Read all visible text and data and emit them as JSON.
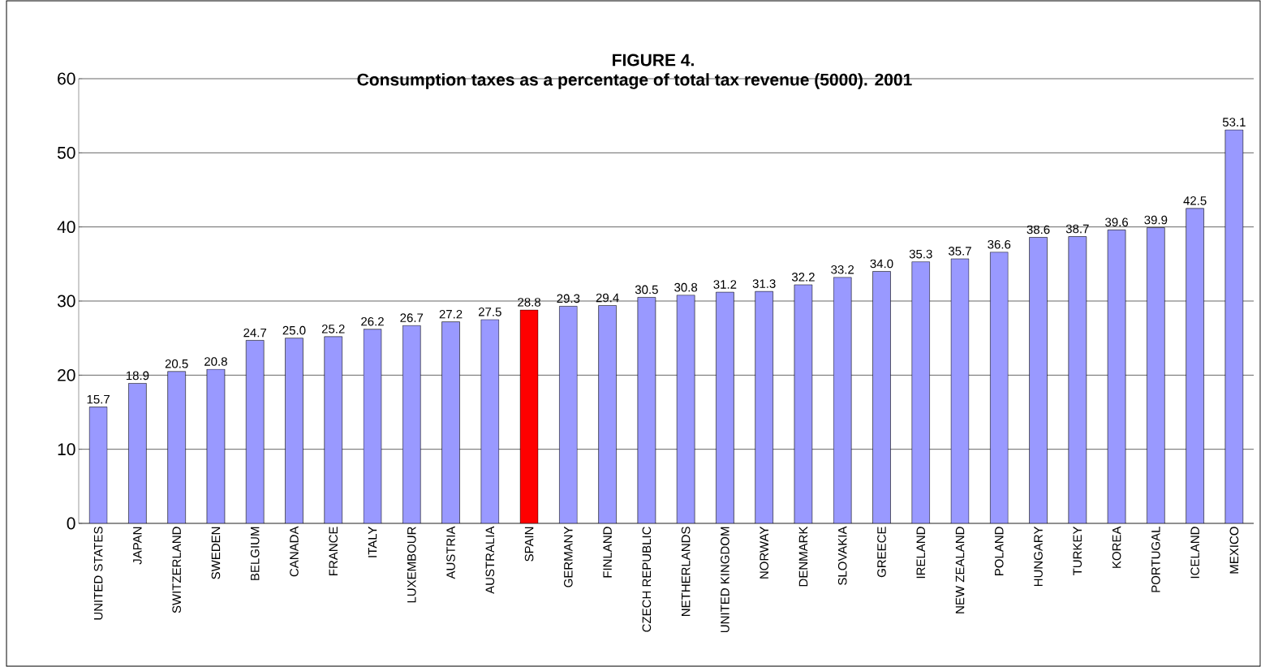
{
  "chart_data": {
    "type": "bar",
    "title": "FIGURE 4.",
    "subtitle": "Consumption taxes as a percentage of total tax revenue  (5000). 2001",
    "categories": [
      "UNITED STATES",
      "JAPAN",
      "SWITZERLAND",
      "SWEDEN",
      "BELGIUM",
      "CANADA",
      "FRANCE",
      "ITALY",
      "LUXEMBOUR",
      "AUSTRIA",
      "AUSTRALIA",
      "SPAIN",
      "GERMANY",
      "FINLAND",
      "CZECH REPUBLIC",
      "NETHERLANDS",
      "UNITED KINGDOM",
      "NORWAY",
      "DENMARK",
      "SLOVAKIA",
      "GREECE",
      "IRELAND",
      "NEW ZEALAND",
      "POLAND",
      "HUNGARY",
      "TURKEY",
      "KOREA",
      "PORTUGAL",
      "ICELAND",
      "MEXICO"
    ],
    "values": [
      15.7,
      18.9,
      20.5,
      20.8,
      24.7,
      25.0,
      25.2,
      26.2,
      26.7,
      27.2,
      27.5,
      28.8,
      29.3,
      29.4,
      30.5,
      30.8,
      31.2,
      31.3,
      32.2,
      33.2,
      34.0,
      35.3,
      35.7,
      36.6,
      38.6,
      38.7,
      39.6,
      39.9,
      42.5,
      53.1
    ],
    "colors": [
      "#9999ff",
      "#9999ff",
      "#9999ff",
      "#9999ff",
      "#9999ff",
      "#9999ff",
      "#9999ff",
      "#9999ff",
      "#9999ff",
      "#9999ff",
      "#9999ff",
      "#ff0000",
      "#9999ff",
      "#9999ff",
      "#9999ff",
      "#9999ff",
      "#9999ff",
      "#9999ff",
      "#9999ff",
      "#9999ff",
      "#9999ff",
      "#9999ff",
      "#9999ff",
      "#9999ff",
      "#9999ff",
      "#9999ff",
      "#9999ff",
      "#9999ff",
      "#9999ff",
      "#9999ff"
    ],
    "value_labels": [
      "15.7",
      "18.9",
      "20.5",
      "20.8",
      "24.7",
      "25.0",
      "25.2",
      "26.2",
      "26.7",
      "27.2",
      "27.5",
      "28.8",
      "29.3",
      "29.4",
      "30.5",
      "30.8",
      "31.2",
      "31.3",
      "32.2",
      "33.2",
      "34.0",
      "35.3",
      "35.7",
      "36.6",
      "38.6",
      "38.7",
      "39.6",
      "39.9",
      "42.5",
      "53.1"
    ],
    "ylim": [
      0,
      60
    ],
    "yticks": [
      0,
      10,
      20,
      30,
      40,
      50,
      60
    ],
    "grid": "y"
  }
}
